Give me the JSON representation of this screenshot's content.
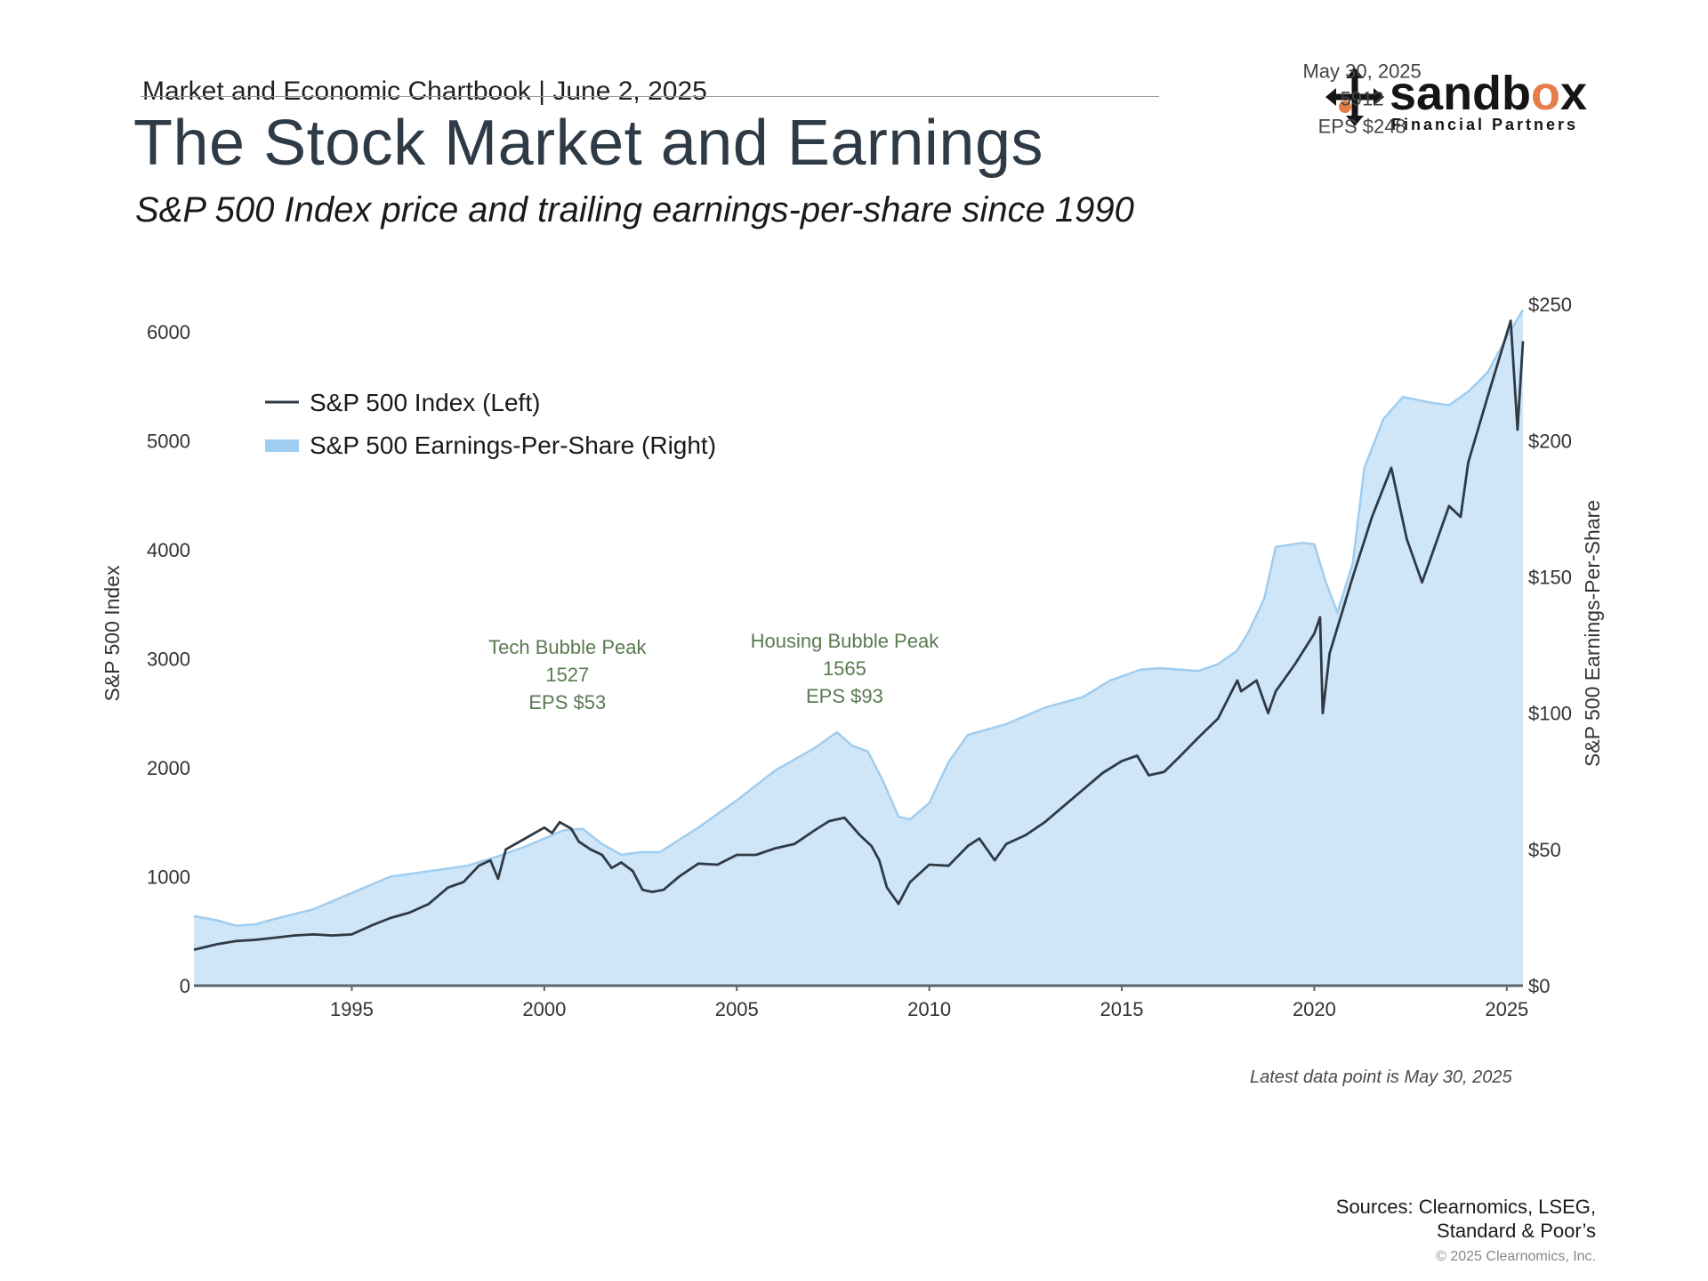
{
  "header": {
    "chartbook": "Market and Economic Chartbook | June 2, 2025",
    "title": "The Stock Market and Earnings",
    "subtitle": "S&P 500 Index price and trailing earnings-per-share since 1990"
  },
  "logo": {
    "name_prefix": "sandb",
    "name_o": "o",
    "name_suffix": "x",
    "tagline": "Financial Partners"
  },
  "colors": {
    "index_line": "#2f3a45",
    "eps_fill": "#cfe6f9",
    "eps_edge": "#9fcdf0",
    "annotation_green": "#5a7a52",
    "annotation_gray": "#444444"
  },
  "chart_data": {
    "type": "line",
    "xlabel": "",
    "ylabel_left": "S&P 500 Index",
    "ylabel_right": "S&P 500 Earnings-Per-Share",
    "x_range": [
      1990.9,
      2025.42
    ],
    "ylim_left": [
      0,
      6300
    ],
    "ylim_right": [
      0,
      252
    ],
    "x_ticks": [
      1995,
      2000,
      2005,
      2010,
      2015,
      2020,
      2025
    ],
    "x_tick_labels": [
      "1995",
      "2000",
      "2005",
      "2010",
      "2015",
      "2020",
      "2025"
    ],
    "y_left_ticks": [
      0,
      1000,
      2000,
      3000,
      4000,
      5000,
      6000
    ],
    "y_left_tick_labels": [
      "0",
      "1000",
      "2000",
      "3000",
      "4000",
      "5000",
      "6000"
    ],
    "y_right_ticks": [
      0,
      50,
      100,
      150,
      200,
      250
    ],
    "y_right_tick_labels": [
      "$0",
      "$50",
      "$100",
      "$150",
      "$200",
      "$250"
    ],
    "legend": [
      "S&P 500 Index (Left)",
      "S&P 500 Earnings-Per-Share (Right)"
    ],
    "legend_position": "top-left",
    "series": [
      {
        "name": "S&P 500 Index (Left)",
        "axis": "left",
        "style": "line",
        "x": [
          1990.9,
          1991.5,
          1992.0,
          1992.5,
          1993.0,
          1993.5,
          1994.0,
          1994.5,
          1995.0,
          1995.5,
          1996.0,
          1996.5,
          1997.0,
          1997.5,
          1997.9,
          1998.3,
          1998.6,
          1998.8,
          1999.0,
          1999.5,
          2000.0,
          2000.2,
          2000.4,
          2000.7,
          2000.9,
          2001.2,
          2001.5,
          2001.75,
          2002.0,
          2002.3,
          2002.55,
          2002.8,
          2003.1,
          2003.5,
          2004.0,
          2004.5,
          2005.0,
          2005.5,
          2006.0,
          2006.5,
          2007.0,
          2007.4,
          2007.8,
          2008.2,
          2008.5,
          2008.7,
          2008.9,
          2009.2,
          2009.5,
          2010.0,
          2010.5,
          2011.0,
          2011.3,
          2011.7,
          2012.0,
          2012.5,
          2013.0,
          2013.5,
          2014.0,
          2014.5,
          2015.0,
          2015.4,
          2015.7,
          2016.1,
          2016.5,
          2017.0,
          2017.5,
          2018.0,
          2018.1,
          2018.5,
          2018.8,
          2019.0,
          2019.5,
          2020.0,
          2020.15,
          2020.22,
          2020.4,
          2020.7,
          2021.0,
          2021.5,
          2022.0,
          2022.4,
          2022.8,
          2023.0,
          2023.5,
          2023.8,
          2024.0,
          2024.5,
          2024.8,
          2025.1,
          2025.28,
          2025.42
        ],
        "y": [
          330,
          380,
          410,
          420,
          440,
          460,
          470,
          460,
          470,
          550,
          620,
          670,
          750,
          900,
          950,
          1100,
          1150,
          980,
          1250,
          1350,
          1450,
          1400,
          1500,
          1440,
          1320,
          1250,
          1200,
          1080,
          1130,
          1050,
          880,
          860,
          880,
          1000,
          1120,
          1110,
          1200,
          1200,
          1260,
          1300,
          1420,
          1510,
          1540,
          1380,
          1280,
          1150,
          900,
          750,
          950,
          1110,
          1100,
          1280,
          1350,
          1150,
          1300,
          1380,
          1500,
          1650,
          1800,
          1950,
          2060,
          2110,
          1930,
          1960,
          2100,
          2280,
          2450,
          2800,
          2700,
          2800,
          2500,
          2700,
          2950,
          3230,
          3380,
          2500,
          3050,
          3400,
          3750,
          4300,
          4750,
          4100,
          3700,
          3900,
          4400,
          4300,
          4800,
          5400,
          5750,
          6100,
          5100,
          5912
        ]
      },
      {
        "name": "S&P 500 Earnings-Per-Share (Right)",
        "axis": "right",
        "style": "area",
        "x": [
          1990.9,
          1991.5,
          1992.0,
          1992.5,
          1993.0,
          1994.0,
          1995.0,
          1996.0,
          1997.0,
          1998.0,
          1998.7,
          1999.5,
          2000.5,
          2001.0,
          2001.5,
          2002.0,
          2002.5,
          2003.0,
          2004.0,
          2005.0,
          2006.0,
          2007.0,
          2007.6,
          2008.0,
          2008.4,
          2008.8,
          2009.2,
          2009.5,
          2010.0,
          2010.5,
          2011.0,
          2012.0,
          2013.0,
          2014.0,
          2014.7,
          2015.5,
          2016.0,
          2016.5,
          2017.0,
          2017.5,
          2018.0,
          2018.3,
          2018.7,
          2019.0,
          2019.7,
          2020.0,
          2020.3,
          2020.6,
          2021.0,
          2021.3,
          2021.8,
          2022.3,
          2023.0,
          2023.5,
          2024.0,
          2024.5,
          2025.0,
          2025.42
        ],
        "y": [
          25.5,
          24,
          22,
          22.5,
          24.5,
          28,
          34,
          40,
          42,
          44,
          47,
          51,
          57,
          57.5,
          52,
          48,
          49,
          49,
          58,
          68,
          79,
          87,
          93,
          88,
          86,
          75,
          62,
          61,
          67,
          82,
          92,
          96,
          102,
          106,
          112,
          116,
          116.5,
          116,
          115.5,
          118,
          123,
          130,
          142,
          161,
          162.5,
          162,
          148,
          137,
          155,
          190,
          208,
          216,
          214,
          213,
          218,
          225,
          238,
          248
        ]
      }
    ],
    "annotations": [
      {
        "id": "tech-bubble",
        "lines": [
          "Tech Bubble Peak",
          "1527",
          "EPS $53"
        ],
        "x": 2000.6,
        "y_left": 1527
      },
      {
        "id": "housing-bubble",
        "lines": [
          "Housing Bubble Peak",
          "1565",
          "EPS $93"
        ],
        "x": 2007.8,
        "y_left": 1565
      },
      {
        "id": "latest",
        "lines": [
          "May 30, 2025",
          "5912",
          "EPS $248"
        ],
        "x": 2025.4,
        "y_left": 5912
      }
    ]
  },
  "footer": {
    "latest_note": "Latest data point is May 30, 2025",
    "sources_line1": "Sources: Clearnomics, LSEG,",
    "sources_line2": "Standard & Poor’s",
    "copyright": "© 2025 Clearnomics, Inc."
  }
}
